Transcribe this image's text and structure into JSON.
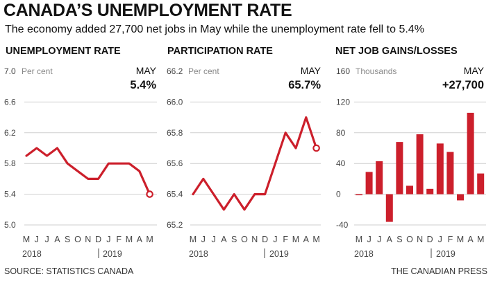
{
  "title": "CANADA’S UNEMPLOYMENT RATE",
  "subtitle": "The economy added 27,700 net jobs in May while the unemployment rate fell to 5.4%",
  "source": "SOURCE: STATISTICS CANADA",
  "credit": "THE CANADIAN PRESS",
  "colors": {
    "accent": "#cc1f2b",
    "grid": "#cfcfcf",
    "text": "#111111",
    "muted": "#888888"
  },
  "chart_data": [
    {
      "type": "line",
      "title": "UNEMPLOYMENT RATE",
      "unit": "Per cent",
      "callout_label": "MAY",
      "callout_value": "5.4%",
      "x": [
        "M",
        "J",
        "J",
        "A",
        "S",
        "O",
        "N",
        "D",
        "J",
        "F",
        "M",
        "A",
        "M"
      ],
      "year_labels": [
        "2018",
        "2019"
      ],
      "series": [
        {
          "values": [
            5.9,
            6.0,
            5.9,
            6.0,
            5.8,
            5.7,
            5.6,
            5.6,
            5.8,
            5.8,
            5.8,
            5.7,
            5.4
          ]
        }
      ],
      "yticks": [
        "7.0",
        "6.6",
        "6.2",
        "5.8",
        "5.4",
        "5.0"
      ],
      "ylim": [
        5.0,
        7.0
      ],
      "grid": true,
      "end_marker": "open-circle"
    },
    {
      "type": "line",
      "title": "PARTICIPATION RATE",
      "unit": "Per cent",
      "callout_label": "MAY",
      "callout_value": "65.7%",
      "x": [
        "M",
        "J",
        "J",
        "A",
        "S",
        "O",
        "N",
        "D",
        "J",
        "F",
        "M",
        "A",
        "M"
      ],
      "year_labels": [
        "2018",
        "2019"
      ],
      "series": [
        {
          "values": [
            65.4,
            65.5,
            65.4,
            65.3,
            65.4,
            65.3,
            65.4,
            65.4,
            65.6,
            65.8,
            65.7,
            65.9,
            65.7
          ]
        }
      ],
      "yticks": [
        "66.2",
        "66.0",
        "65.8",
        "65.6",
        "65.4",
        "65.2"
      ],
      "ylim": [
        65.2,
        66.2
      ],
      "grid": true,
      "end_marker": "open-circle"
    },
    {
      "type": "bar",
      "title": "NET JOB GAINS/LOSSES",
      "unit": "Thousands",
      "callout_label": "MAY",
      "callout_value": "+27,700",
      "x": [
        "M",
        "J",
        "J",
        "A",
        "S",
        "O",
        "N",
        "D",
        "J",
        "F",
        "M",
        "A",
        "M"
      ],
      "year_labels": [
        "2018",
        "2019"
      ],
      "values": [
        -1,
        29,
        43,
        -36,
        68,
        11,
        78,
        7,
        66,
        55,
        -8,
        106,
        27
      ],
      "yticks": [
        "160",
        "120",
        "80",
        "40",
        "0",
        "-40"
      ],
      "ylim": [
        -40,
        160
      ],
      "grid": true
    }
  ]
}
